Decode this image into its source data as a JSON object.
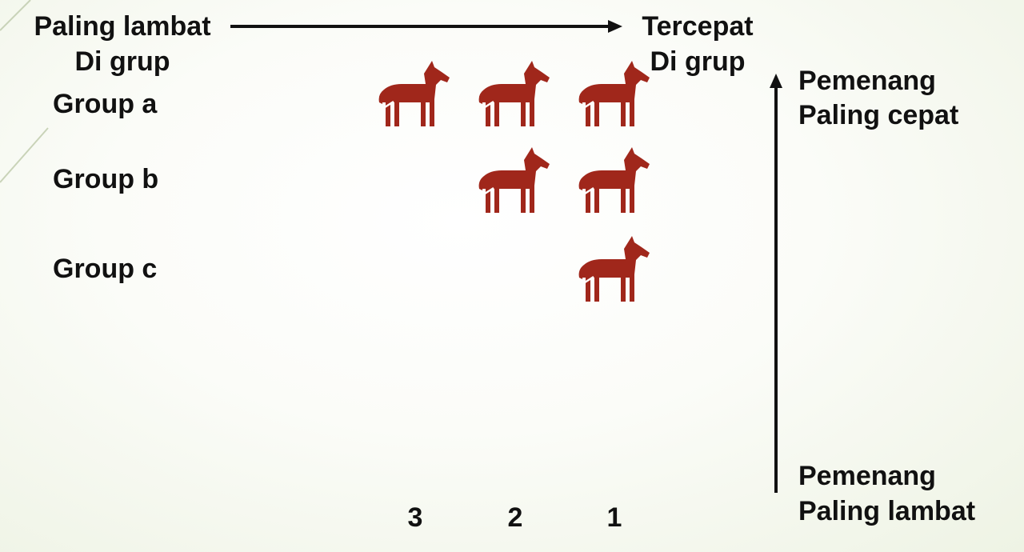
{
  "header": {
    "left_title": "Paling lambat",
    "left_sub": "Di grup",
    "right_title": "Tercepat",
    "right_sub": "Di grup"
  },
  "groups": [
    {
      "label": "Group a",
      "horses": 3
    },
    {
      "label": "Group b",
      "horses": 2
    },
    {
      "label": "Group c",
      "horses": 1
    }
  ],
  "columns": [
    "3",
    "2",
    "1"
  ],
  "side": {
    "top_line1": "Pemenang",
    "top_line2": "Paling cepat",
    "bottom_line1": "Pemenang",
    "bottom_line2": "Paling lambat"
  },
  "icons": {
    "horse": "horse-icon"
  },
  "colors": {
    "horse": "#a0271b",
    "text": "#111111"
  }
}
